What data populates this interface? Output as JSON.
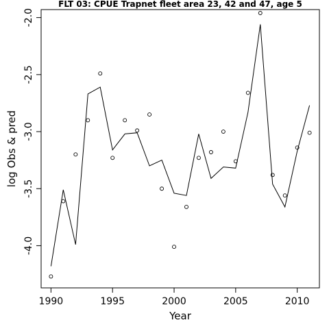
{
  "chart_data": {
    "type": "line",
    "title": "FLT 03: CPUE Trapnet fleet area 23, 42 and 47, age 5",
    "xlabel": "Year",
    "ylabel": "log Obs & pred",
    "xlim": [
      1989.2,
      2011.8
    ],
    "ylim": [
      -4.37,
      -1.93
    ],
    "x_ticks": [
      1990,
      1995,
      2000,
      2005,
      2010
    ],
    "x_tick_labels": [
      "1990",
      "1995",
      "2000",
      "2005",
      "2010"
    ],
    "y_ticks": [
      -4.0,
      -3.5,
      -3.0,
      -2.5,
      -2.0
    ],
    "y_tick_labels": [
      "-4.0",
      "-3.5",
      "-3.0",
      "-2.5",
      "-2.0"
    ],
    "grid": false,
    "legend": "none",
    "series": [
      {
        "style": "points",
        "x": [
          1990,
          1991,
          1992,
          1993,
          1994,
          1995,
          1996,
          1997,
          1998,
          1999,
          2000,
          2001,
          2002,
          2003,
          2004,
          2005,
          2006,
          2007,
          2008,
          2009,
          2010,
          2011
        ],
        "values": [
          -4.27,
          -3.61,
          -3.2,
          -2.9,
          -2.49,
          -3.23,
          -2.9,
          -2.99,
          -2.85,
          -3.5,
          -4.01,
          -3.66,
          -3.23,
          -3.18,
          -3.0,
          -3.26,
          -2.66,
          -1.96,
          -3.38,
          -3.56,
          -3.14,
          -3.01
        ]
      },
      {
        "style": "line",
        "x": [
          1990,
          1991,
          1992,
          1993,
          1994,
          1995,
          1996,
          1997,
          1998,
          1999,
          2000,
          2001,
          2002,
          2003,
          2004,
          2005,
          2006,
          2007,
          2008,
          2009,
          2010,
          2011
        ],
        "values": [
          -4.18,
          -3.51,
          -3.99,
          -2.67,
          -2.61,
          -3.16,
          -3.02,
          -3.01,
          -3.3,
          -3.25,
          -3.54,
          -3.56,
          -3.02,
          -3.41,
          -3.31,
          -3.32,
          -2.83,
          -2.06,
          -3.46,
          -3.66,
          -3.17,
          -2.77
        ]
      }
    ]
  }
}
